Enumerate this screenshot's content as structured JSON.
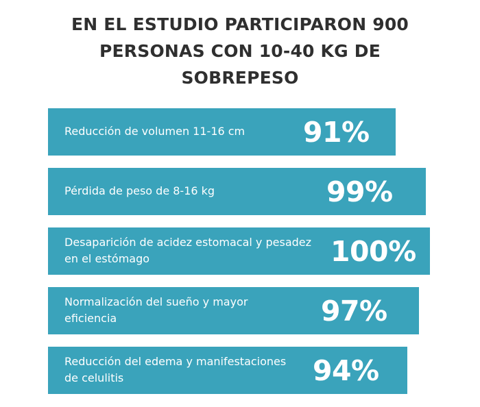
{
  "title_lines": [
    "EN EL ESTUDIO PARTICIPARON 900",
    "PERSONAS CON 10-40 KG DE",
    "SOBREPESO"
  ],
  "accent_color": "#3aa3bb",
  "items": [
    {
      "label_lines": [
        "Reducción de volumen 11-16 cm"
      ],
      "value": "91%",
      "percent": 91
    },
    {
      "label_lines": [
        "Pérdida de peso de 8-16 kg"
      ],
      "value": "99%",
      "percent": 99
    },
    {
      "label_lines": [
        "Desaparición de acidez estomacal y pesadez",
        "en el estómago"
      ],
      "value": "100%",
      "percent": 100
    },
    {
      "label_lines": [
        "Normalización del sueño y mayor",
        "eficiencia"
      ],
      "value": "97%",
      "percent": 97
    },
    {
      "label_lines": [
        "Reducción del edema y manifestaciones",
        "de celulitis"
      ],
      "value": "94%",
      "percent": 94
    }
  ]
}
